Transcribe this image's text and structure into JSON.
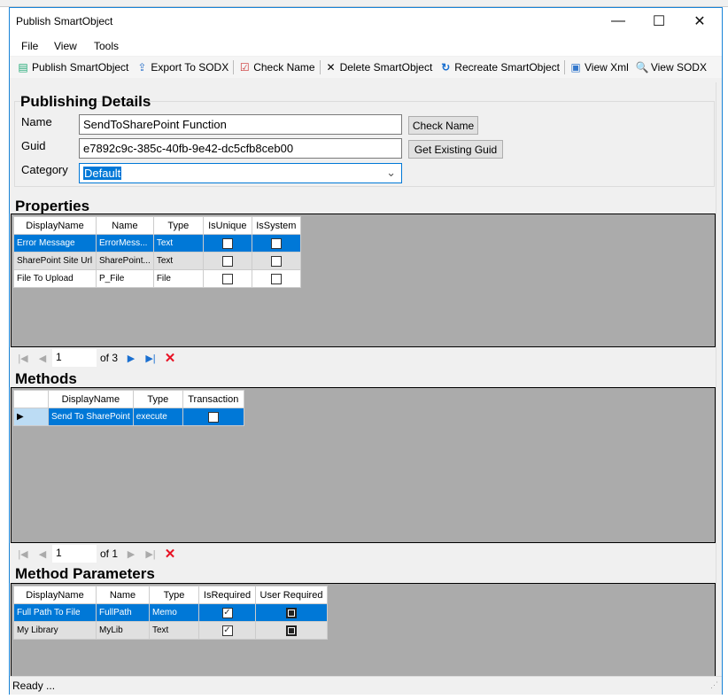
{
  "window": {
    "title": "Publish SmartObject",
    "min": "—",
    "max": "☐",
    "close": "✕"
  },
  "menu": [
    "File",
    "View",
    "Tools"
  ],
  "toolbar": [
    {
      "label": "Publish SmartObject",
      "icon": "publish-icon"
    },
    {
      "label": "Export To SODX",
      "icon": "export-icon"
    },
    {
      "label": "Check Name",
      "icon": "check-name-icon"
    },
    {
      "label": "Delete SmartObject",
      "icon": "delete-icon"
    },
    {
      "label": "Recreate SmartObject",
      "icon": "recreate-icon"
    },
    {
      "label": "View Xml",
      "icon": "view-xml-icon"
    },
    {
      "label": "View SODX",
      "icon": "view-sodx-icon"
    }
  ],
  "publishing": {
    "heading": "Publishing Details",
    "name_label": "Name",
    "name_value": "SendToSharePoint Function",
    "guid_label": "Guid",
    "guid_value": "e7892c9c-385c-40fb-9e42-dc5cfb8ceb00",
    "category_label": "Category",
    "category_value": "Default",
    "check_name_btn": "Check Name",
    "get_guid_btn": "Get Existing Guid"
  },
  "properties": {
    "heading": "Properties",
    "columns": [
      "DisplayName",
      "Name",
      "Type",
      "IsUnique",
      "IsSystem"
    ],
    "rows": [
      {
        "display": "Error Message",
        "name": "ErrorMess...",
        "type": "Text",
        "unique": false,
        "system": false
      },
      {
        "display": "SharePoint Site Url",
        "name": "SharePoint...",
        "type": "Text",
        "unique": false,
        "system": false
      },
      {
        "display": "File To Upload",
        "name": "P_File",
        "type": "File",
        "unique": false,
        "system": false
      }
    ],
    "pager": {
      "position": "1",
      "of": "of 3"
    }
  },
  "methods": {
    "heading": "Methods",
    "columns": [
      "DisplayName",
      "Type",
      "Transaction"
    ],
    "rows": [
      {
        "display": "Send To SharePoint",
        "type": "execute",
        "transaction": false
      }
    ],
    "pager": {
      "position": "1",
      "of": "of 1"
    }
  },
  "parameters": {
    "heading": "Method Parameters",
    "columns": [
      "DisplayName",
      "Name",
      "Type",
      "IsRequired",
      "User Required"
    ],
    "rows": [
      {
        "display": "Full Path To File",
        "name": "FullPath",
        "type": "Memo",
        "required": true,
        "user_required": "indeterminate"
      },
      {
        "display": "My Library",
        "name": "MyLib",
        "type": "Text",
        "required": true,
        "user_required": "indeterminate"
      }
    ]
  },
  "status": "Ready ...",
  "colors": {
    "selection": "#0078d7",
    "grid_bg": "#ababab",
    "delete": "#e81123"
  }
}
